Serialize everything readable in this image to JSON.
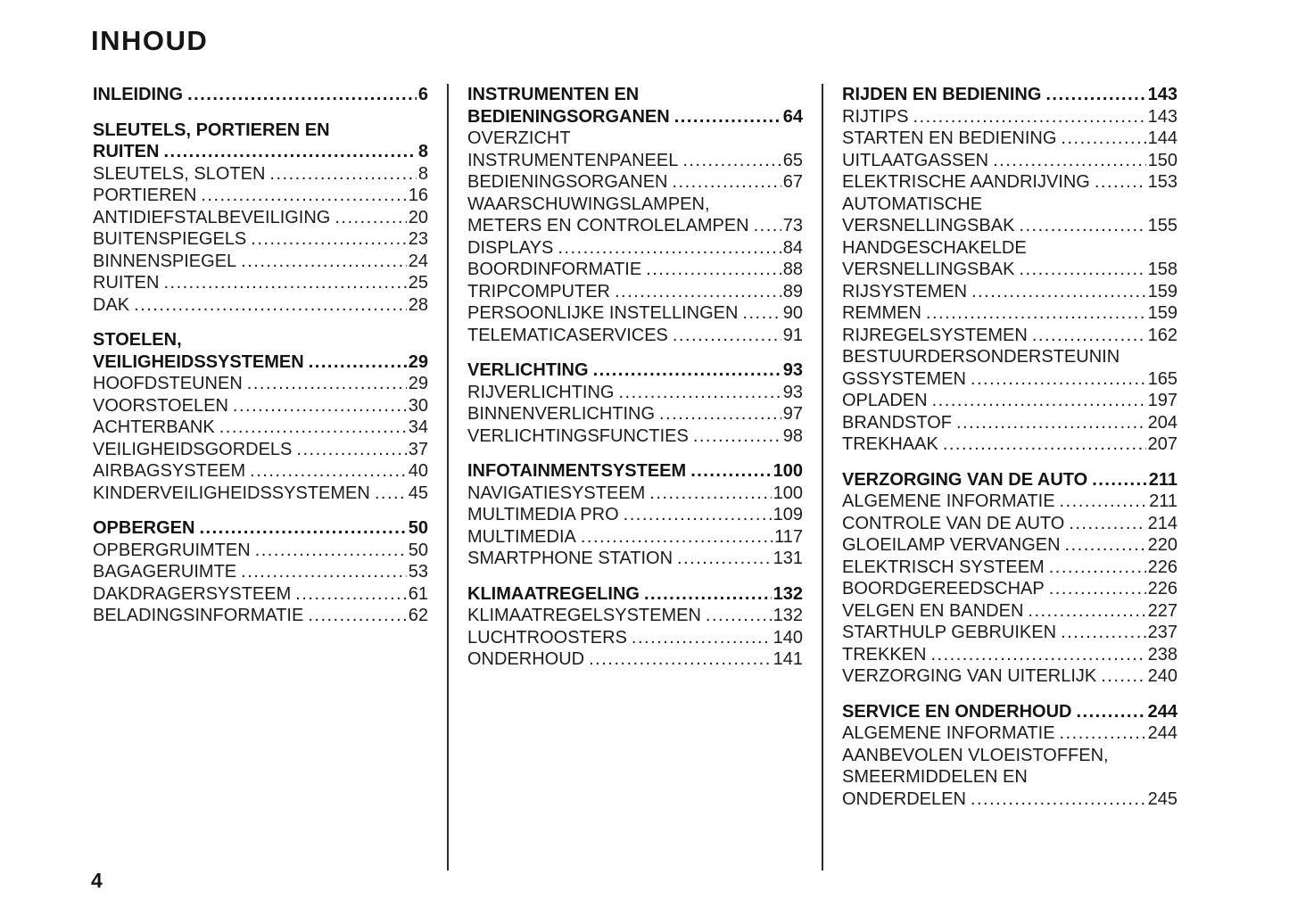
{
  "page": {
    "title": "INHOUD",
    "page_number": "4"
  },
  "columns": [
    {
      "sections": [
        {
          "heading": {
            "lines": [
              "INLEIDING"
            ],
            "page": "6"
          },
          "items": []
        },
        {
          "heading": {
            "lines": [
              "SLEUTELS, PORTIEREN EN",
              "RUITEN"
            ],
            "page": "8"
          },
          "items": [
            {
              "lines": [
                "SLEUTELS, SLOTEN"
              ],
              "page": "8"
            },
            {
              "lines": [
                "PORTIEREN"
              ],
              "page": "16"
            },
            {
              "lines": [
                "ANTIDIEFSTALBEVEILIGING"
              ],
              "page": "20"
            },
            {
              "lines": [
                "BUITENSPIEGELS"
              ],
              "page": "23"
            },
            {
              "lines": [
                "BINNENSPIEGEL"
              ],
              "page": "24"
            },
            {
              "lines": [
                "RUITEN"
              ],
              "page": "25"
            },
            {
              "lines": [
                "DAK"
              ],
              "page": "28"
            }
          ]
        },
        {
          "heading": {
            "lines": [
              "STOELEN,",
              "VEILIGHEIDSSYSTEMEN"
            ],
            "page": "29"
          },
          "items": [
            {
              "lines": [
                "HOOFDSTEUNEN"
              ],
              "page": "29"
            },
            {
              "lines": [
                "VOORSTOELEN"
              ],
              "page": "30"
            },
            {
              "lines": [
                "ACHTERBANK"
              ],
              "page": "34"
            },
            {
              "lines": [
                "VEILIGHEIDSGORDELS"
              ],
              "page": "37"
            },
            {
              "lines": [
                "AIRBAGSYSTEEM"
              ],
              "page": "40"
            },
            {
              "lines": [
                "KINDERVEILIGHEIDSSYSTEMEN"
              ],
              "page": "45"
            }
          ]
        },
        {
          "heading": {
            "lines": [
              "OPBERGEN"
            ],
            "page": "50"
          },
          "items": [
            {
              "lines": [
                "OPBERGRUIMTEN"
              ],
              "page": "50"
            },
            {
              "lines": [
                "BAGAGERUIMTE"
              ],
              "page": "53"
            },
            {
              "lines": [
                "DAKDRAGERSYSTEEM"
              ],
              "page": "61"
            },
            {
              "lines": [
                "BELADINGSINFORMATIE"
              ],
              "page": "62"
            }
          ]
        }
      ]
    },
    {
      "sections": [
        {
          "heading": {
            "lines": [
              "INSTRUMENTEN EN",
              "BEDIENINGSORGANEN"
            ],
            "page": "64"
          },
          "items": [
            {
              "lines": [
                "OVERZICHT",
                "INSTRUMENTENPANEEL"
              ],
              "page": "65"
            },
            {
              "lines": [
                "BEDIENINGSORGANEN"
              ],
              "page": "67"
            },
            {
              "lines": [
                "WAARSCHUWINGSLAMPEN,",
                "METERS EN CONTROLELAMPEN"
              ],
              "page": "73"
            },
            {
              "lines": [
                "DISPLAYS"
              ],
              "page": "84"
            },
            {
              "lines": [
                "BOORDINFORMATIE"
              ],
              "page": "88"
            },
            {
              "lines": [
                "TRIPCOMPUTER"
              ],
              "page": "89"
            },
            {
              "lines": [
                "PERSOONLIJKE INSTELLINGEN"
              ],
              "page": "90"
            },
            {
              "lines": [
                "TELEMATICASERVICES"
              ],
              "page": "91"
            }
          ]
        },
        {
          "heading": {
            "lines": [
              "VERLICHTING"
            ],
            "page": "93"
          },
          "items": [
            {
              "lines": [
                "RIJVERLICHTING"
              ],
              "page": "93"
            },
            {
              "lines": [
                "BINNENVERLICHTING"
              ],
              "page": "97"
            },
            {
              "lines": [
                "VERLICHTINGSFUNCTIES"
              ],
              "page": "98"
            }
          ]
        },
        {
          "heading": {
            "lines": [
              "INFOTAINMENTSYSTEEM"
            ],
            "page": "100"
          },
          "items": [
            {
              "lines": [
                "NAVIGATIESYSTEEM"
              ],
              "page": "100"
            },
            {
              "lines": [
                "MULTIMEDIA PRO"
              ],
              "page": "109"
            },
            {
              "lines": [
                "MULTIMEDIA"
              ],
              "page": "117"
            },
            {
              "lines": [
                "SMARTPHONE STATION"
              ],
              "page": "131"
            }
          ]
        },
        {
          "heading": {
            "lines": [
              "KLIMAATREGELING"
            ],
            "page": "132"
          },
          "items": [
            {
              "lines": [
                "KLIMAATREGELSYSTEMEN"
              ],
              "page": "132"
            },
            {
              "lines": [
                "LUCHTROOSTERS"
              ],
              "page": "140"
            },
            {
              "lines": [
                "ONDERHOUD"
              ],
              "page": "141"
            }
          ]
        }
      ]
    },
    {
      "sections": [
        {
          "heading": {
            "lines": [
              "RIJDEN EN BEDIENING"
            ],
            "page": "143"
          },
          "items": [
            {
              "lines": [
                "RIJTIPS"
              ],
              "page": "143"
            },
            {
              "lines": [
                "STARTEN EN BEDIENING"
              ],
              "page": "144"
            },
            {
              "lines": [
                "UITLAATGASSEN"
              ],
              "page": "150"
            },
            {
              "lines": [
                "ELEKTRISCHE AANDRIJVING"
              ],
              "page": "153"
            },
            {
              "lines": [
                "AUTOMATISCHE",
                "VERSNELLINGSBAK"
              ],
              "page": "155"
            },
            {
              "lines": [
                "HANDGESCHAKELDE",
                "VERSNELLINGSBAK"
              ],
              "page": "158"
            },
            {
              "lines": [
                "RIJSYSTEMEN"
              ],
              "page": "159"
            },
            {
              "lines": [
                "REMMEN"
              ],
              "page": "159"
            },
            {
              "lines": [
                "RIJREGELSYSTEMEN"
              ],
              "page": "162"
            },
            {
              "lines": [
                "BESTUURDERSONDERSTEUNIN",
                "GSSYSTEMEN"
              ],
              "page": "165"
            },
            {
              "lines": [
                "OPLADEN"
              ],
              "page": "197"
            },
            {
              "lines": [
                "BRANDSTOF"
              ],
              "page": "204"
            },
            {
              "lines": [
                "TREKHAAK"
              ],
              "page": "207"
            }
          ]
        },
        {
          "heading": {
            "lines": [
              "VERZORGING VAN DE AUTO"
            ],
            "page": "211"
          },
          "items": [
            {
              "lines": [
                "ALGEMENE INFORMATIE"
              ],
              "page": "211"
            },
            {
              "lines": [
                "CONTROLE VAN DE AUTO"
              ],
              "page": "214"
            },
            {
              "lines": [
                "GLOEILAMP VERVANGEN"
              ],
              "page": "220"
            },
            {
              "lines": [
                "ELEKTRISCH SYSTEEM"
              ],
              "page": "226"
            },
            {
              "lines": [
                "BOORDGEREEDSCHAP"
              ],
              "page": "226"
            },
            {
              "lines": [
                "VELGEN EN BANDEN"
              ],
              "page": "227"
            },
            {
              "lines": [
                "STARTHULP GEBRUIKEN"
              ],
              "page": "237"
            },
            {
              "lines": [
                "TREKKEN"
              ],
              "page": "238"
            },
            {
              "lines": [
                "VERZORGING VAN UITERLIJK"
              ],
              "page": "240"
            }
          ]
        },
        {
          "heading": {
            "lines": [
              "SERVICE EN ONDERHOUD"
            ],
            "page": "244"
          },
          "items": [
            {
              "lines": [
                "ALGEMENE INFORMATIE"
              ],
              "page": "244"
            },
            {
              "lines": [
                "AANBEVOLEN VLOEISTOFFEN,",
                "SMEERMIDDELEN EN",
                "ONDERDELEN"
              ],
              "page": "245"
            }
          ]
        }
      ]
    }
  ]
}
